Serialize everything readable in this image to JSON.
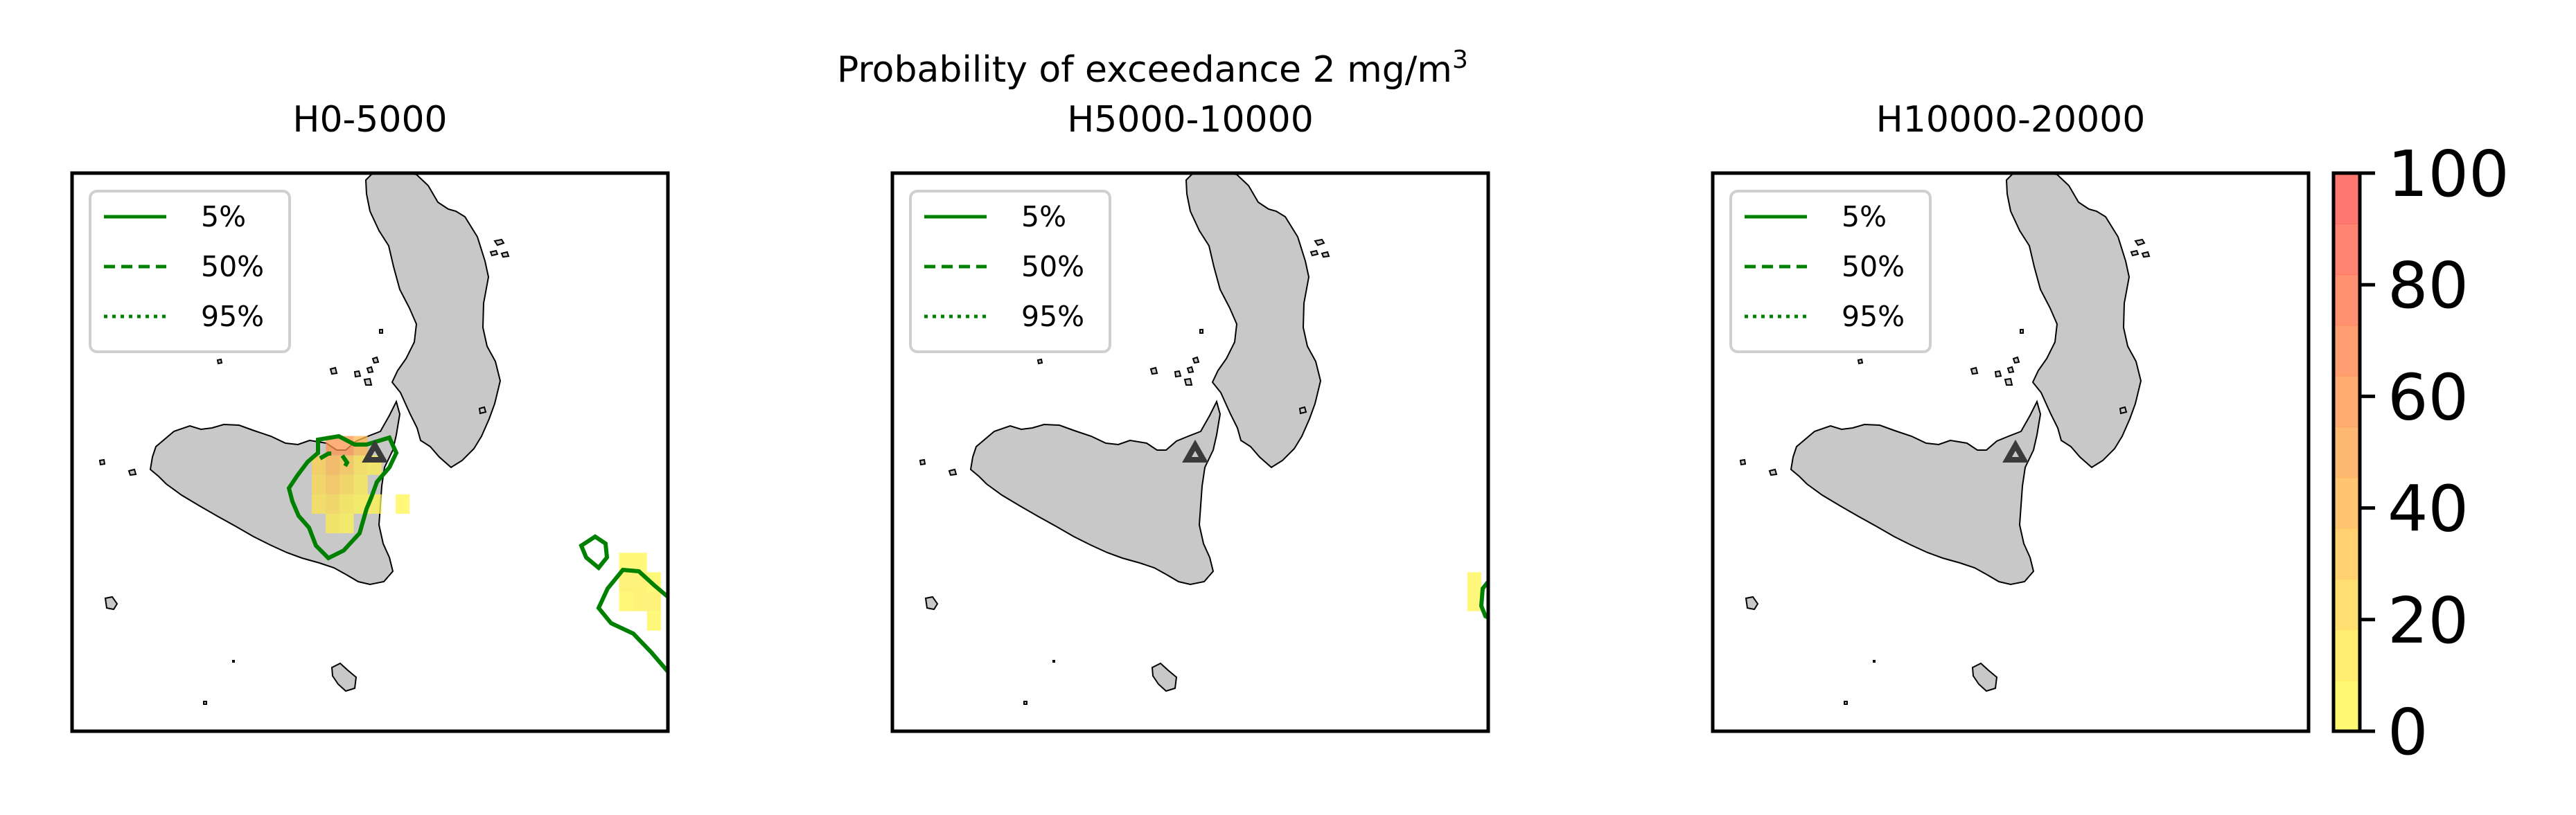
{
  "chart_data": {
    "type": "heatmap",
    "title": "Probability of exceedance 2 mg/m",
    "title_superscript": "3",
    "panels": [
      {
        "title": "H0-5000",
        "volcano_marker": "triangle",
        "probability_cells": [
          {
            "lon": 14.8,
            "lat": 37.8,
            "value": 60
          },
          {
            "lon": 14.95,
            "lat": 37.8,
            "value": 60
          },
          {
            "lon": 15.1,
            "lat": 37.8,
            "value": 40
          },
          {
            "lon": 14.65,
            "lat": 37.65,
            "value": 25
          },
          {
            "lon": 14.8,
            "lat": 37.65,
            "value": 40
          },
          {
            "lon": 14.95,
            "lat": 37.65,
            "value": 30
          },
          {
            "lon": 15.1,
            "lat": 37.65,
            "value": 15
          },
          {
            "lon": 15.25,
            "lat": 37.65,
            "value": 10
          },
          {
            "lon": 14.65,
            "lat": 37.5,
            "value": 20
          },
          {
            "lon": 14.8,
            "lat": 37.5,
            "value": 30
          },
          {
            "lon": 14.95,
            "lat": 37.5,
            "value": 20
          },
          {
            "lon": 15.1,
            "lat": 37.5,
            "value": 10
          },
          {
            "lon": 14.65,
            "lat": 37.35,
            "value": 15
          },
          {
            "lon": 14.8,
            "lat": 37.35,
            "value": 20
          },
          {
            "lon": 14.95,
            "lat": 37.35,
            "value": 10
          },
          {
            "lon": 15.1,
            "lat": 37.35,
            "value": 5
          },
          {
            "lon": 15.25,
            "lat": 37.35,
            "value": 5
          },
          {
            "lon": 14.8,
            "lat": 37.2,
            "value": 10
          },
          {
            "lon": 14.95,
            "lat": 37.2,
            "value": 5
          },
          {
            "lon": 15.55,
            "lat": 37.35,
            "value": 5
          },
          {
            "lon": 17.95,
            "lat": 36.9,
            "value": 5
          },
          {
            "lon": 18.1,
            "lat": 36.9,
            "value": 5
          },
          {
            "lon": 17.95,
            "lat": 36.75,
            "value": 10
          },
          {
            "lon": 18.1,
            "lat": 36.75,
            "value": 10
          },
          {
            "lon": 18.25,
            "lat": 36.75,
            "value": 5
          },
          {
            "lon": 17.95,
            "lat": 36.6,
            "value": 5
          },
          {
            "lon": 18.1,
            "lat": 36.6,
            "value": 10
          },
          {
            "lon": 18.25,
            "lat": 36.6,
            "value": 10
          },
          {
            "lon": 18.25,
            "lat": 36.45,
            "value": 5
          }
        ]
      },
      {
        "title": "H5000-10000",
        "volcano_marker": "triangle",
        "probability_cells": [
          {
            "lon": 18.25,
            "lat": 36.75,
            "value": 5
          },
          {
            "lon": 18.25,
            "lat": 36.6,
            "value": 5
          }
        ]
      },
      {
        "title": "H10000-20000",
        "volcano_marker": "triangle",
        "probability_cells": []
      }
    ],
    "legend": [
      "5%",
      "50%",
      "95%"
    ],
    "legend_placement": "upper-left",
    "colorbar": {
      "ticks": [
        "0",
        "20",
        "40",
        "60",
        "80",
        "100"
      ],
      "range": [
        0,
        100
      ],
      "levels": 11,
      "colors": [
        "#ffff4d",
        "#ffa64d",
        "#ff4d4d"
      ]
    },
    "contour_color": "#008000",
    "land_color": "#c8c8c8",
    "lon_range": [
      12.0,
      18.4
    ],
    "lat_range": [
      35.6,
      39.9
    ]
  }
}
